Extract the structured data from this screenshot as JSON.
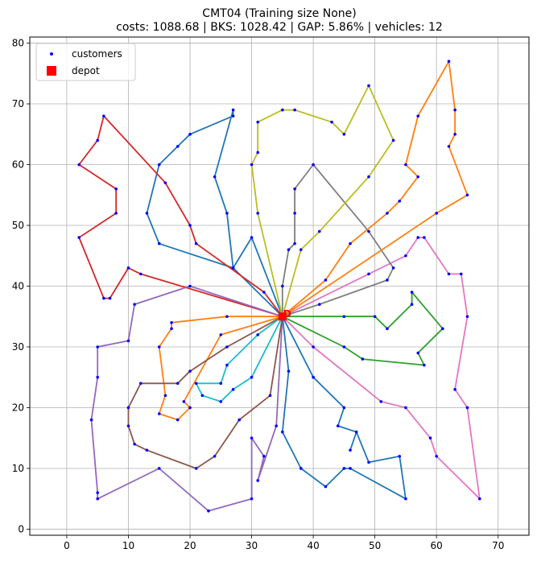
{
  "chart_data": {
    "type": "line",
    "title": "CMT04 (Training size None)",
    "subtitle": "costs: 1088.68 | BKS: 1028.42 | GAP: 5.86% | vehicles: 12",
    "xlabel": "",
    "ylabel": "",
    "xlim": [
      -6,
      75
    ],
    "ylim": [
      -1,
      81
    ],
    "x_ticks": [
      0,
      10,
      20,
      30,
      40,
      50,
      60,
      70
    ],
    "y_ticks": [
      0,
      10,
      20,
      30,
      40,
      50,
      60,
      70,
      80
    ],
    "grid": true,
    "legend_position": "top-left",
    "legend": [
      {
        "label": "customers",
        "marker": "dot",
        "color": "#0000ff"
      },
      {
        "label": "depot",
        "marker": "square",
        "color": "#ff0000"
      }
    ],
    "depot": {
      "x": 35,
      "y": 35,
      "label": "D"
    },
    "routes": [
      {
        "color": "#1f77b4",
        "points": [
          [
            35,
            35
          ],
          [
            27,
            43
          ],
          [
            26,
            52
          ],
          [
            24,
            58
          ],
          [
            27,
            69
          ],
          [
            27,
            68
          ],
          [
            20,
            65
          ],
          [
            18,
            63
          ],
          [
            15,
            60
          ],
          [
            13,
            52
          ],
          [
            15,
            47
          ],
          [
            27,
            43
          ],
          [
            30,
            48
          ],
          [
            35,
            35
          ]
        ]
      },
      {
        "color": "#d62728",
        "points": [
          [
            35,
            35
          ],
          [
            32,
            39
          ],
          [
            21,
            47
          ],
          [
            20,
            50
          ],
          [
            16,
            57
          ],
          [
            6,
            68
          ],
          [
            5,
            64
          ],
          [
            2,
            60
          ],
          [
            8,
            56
          ],
          [
            8,
            52
          ],
          [
            2,
            48
          ],
          [
            6,
            38
          ],
          [
            7,
            38
          ],
          [
            10,
            43
          ],
          [
            12,
            42
          ],
          [
            35,
            35
          ]
        ]
      },
      {
        "color": "#9467bd",
        "points": [
          [
            35,
            35
          ],
          [
            20,
            40
          ],
          [
            11,
            37
          ],
          [
            10,
            31
          ],
          [
            5,
            30
          ],
          [
            5,
            25
          ],
          [
            4,
            18
          ],
          [
            5,
            6
          ],
          [
            5,
            5
          ],
          [
            15,
            10
          ],
          [
            23,
            3
          ],
          [
            30,
            5
          ],
          [
            30,
            15
          ],
          [
            32,
            12
          ],
          [
            31,
            8
          ],
          [
            34,
            17
          ],
          [
            35,
            35
          ]
        ]
      },
      {
        "color": "#ff7f0e",
        "points": [
          [
            35,
            35
          ],
          [
            26,
            35
          ],
          [
            17,
            34
          ],
          [
            17,
            33
          ],
          [
            15,
            30
          ],
          [
            16,
            22
          ],
          [
            15,
            19
          ],
          [
            18,
            18
          ],
          [
            20,
            20
          ],
          [
            19,
            21
          ],
          [
            25,
            32
          ],
          [
            35,
            35
          ]
        ]
      },
      {
        "color": "#8c564b",
        "points": [
          [
            35,
            35
          ],
          [
            26,
            30
          ],
          [
            20,
            26
          ],
          [
            18,
            24
          ],
          [
            12,
            24
          ],
          [
            10,
            20
          ],
          [
            10,
            17
          ],
          [
            11,
            14
          ],
          [
            13,
            13
          ],
          [
            21,
            10
          ],
          [
            24,
            12
          ],
          [
            28,
            18
          ],
          [
            33,
            22
          ],
          [
            35,
            35
          ]
        ]
      },
      {
        "color": "#17becf",
        "points": [
          [
            35,
            35
          ],
          [
            30,
            25
          ],
          [
            27,
            23
          ],
          [
            25,
            21
          ],
          [
            22,
            22
          ],
          [
            21,
            24
          ],
          [
            25,
            24
          ],
          [
            26,
            27
          ],
          [
            31,
            32
          ],
          [
            35,
            35
          ]
        ]
      },
      {
        "color": "#1f77b4",
        "points": [
          [
            35,
            35
          ],
          [
            36,
            26
          ],
          [
            35,
            16
          ],
          [
            38,
            10
          ],
          [
            42,
            7
          ],
          [
            45,
            10
          ],
          [
            46,
            10
          ],
          [
            55,
            5
          ],
          [
            54,
            12
          ],
          [
            49,
            11
          ],
          [
            47,
            16
          ],
          [
            46,
            13
          ],
          [
            47,
            16
          ],
          [
            44,
            17
          ],
          [
            45,
            20
          ],
          [
            40,
            25
          ],
          [
            35,
            35
          ]
        ]
      },
      {
        "color": "#e377c2",
        "points": [
          [
            35,
            35
          ],
          [
            40,
            30
          ],
          [
            51,
            21
          ],
          [
            55,
            20
          ],
          [
            59,
            15
          ],
          [
            60,
            12
          ],
          [
            67,
            5
          ],
          [
            65,
            20
          ],
          [
            63,
            23
          ],
          [
            65,
            35
          ],
          [
            64,
            42
          ],
          [
            62,
            42
          ],
          [
            58,
            48
          ],
          [
            57,
            48
          ],
          [
            55,
            45
          ],
          [
            49,
            42
          ],
          [
            35,
            35
          ]
        ]
      },
      {
        "color": "#2ca02c",
        "points": [
          [
            35,
            35
          ],
          [
            45,
            35
          ],
          [
            50,
            35
          ],
          [
            52,
            33
          ],
          [
            56,
            37
          ],
          [
            56,
            39
          ],
          [
            61,
            33
          ],
          [
            57,
            29
          ],
          [
            58,
            27
          ],
          [
            48,
            28
          ],
          [
            45,
            30
          ],
          [
            35,
            35
          ]
        ]
      },
      {
        "color": "#7f7f7f",
        "points": [
          [
            35,
            35
          ],
          [
            41,
            37
          ],
          [
            52,
            41
          ],
          [
            53,
            43
          ],
          [
            49,
            49
          ],
          [
            40,
            60
          ],
          [
            37,
            56
          ],
          [
            37,
            52
          ],
          [
            37,
            47
          ],
          [
            36,
            46
          ],
          [
            35,
            40
          ],
          [
            35,
            35
          ]
        ]
      },
      {
        "color": "#ff7f0e",
        "points": [
          [
            35,
            35
          ],
          [
            42,
            41
          ],
          [
            46,
            47
          ],
          [
            52,
            52
          ],
          [
            54,
            54
          ],
          [
            57,
            58
          ],
          [
            55,
            60
          ],
          [
            57,
            68
          ],
          [
            62,
            77
          ],
          [
            63,
            69
          ],
          [
            63,
            65
          ],
          [
            62,
            63
          ],
          [
            65,
            55
          ],
          [
            60,
            52
          ],
          [
            35,
            35
          ]
        ]
      },
      {
        "color": "#bcbd22",
        "points": [
          [
            35,
            35
          ],
          [
            38,
            46
          ],
          [
            41,
            49
          ],
          [
            49,
            58
          ],
          [
            53,
            64
          ],
          [
            49,
            73
          ],
          [
            45,
            65
          ],
          [
            43,
            67
          ],
          [
            37,
            69
          ],
          [
            35,
            69
          ],
          [
            31,
            67
          ],
          [
            31,
            62
          ],
          [
            30,
            60
          ],
          [
            31,
            52
          ],
          [
            35,
            35
          ]
        ]
      }
    ]
  }
}
